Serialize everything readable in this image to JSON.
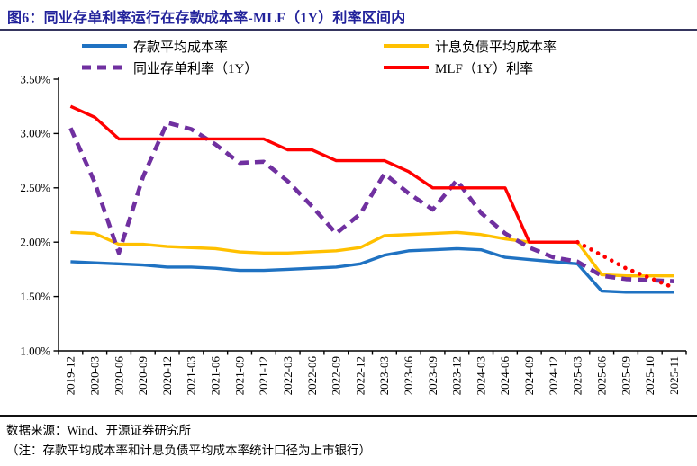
{
  "title": "图6：同业存单利率运行在存款成本率-MLF（1Y）利率区间内",
  "colors": {
    "title": "#22229B",
    "axis": "#000000",
    "deposit_blue": "#1F72C2",
    "liabilities_yellow": "#FFC000",
    "ncd_purple": "#7030A0",
    "mlf_red": "#FF0000"
  },
  "legend": {
    "position": "top",
    "items": [
      {
        "label": "存款平均成本率",
        "series": "deposit"
      },
      {
        "label": "计息负债平均成本率",
        "series": "liabilities"
      },
      {
        "label": "同业存单利率（1Y）",
        "series": "ncd1y"
      },
      {
        "label": "MLF（1Y）利率",
        "series": "mlf1y"
      }
    ]
  },
  "footer": {
    "source": "数据来源：Wind、开源证券研究所",
    "note": "（注：存款平均成本率和计息负债平均成本率统计口径为上市银行）"
  },
  "chart_data": {
    "type": "line",
    "title": "同业存单利率运行在存款成本率-MLF（1Y）利率区间内",
    "xlabel": "",
    "ylabel": "",
    "grid": false,
    "legend_position": "top",
    "ylim": [
      1.0,
      3.5
    ],
    "y_ticks": [
      {
        "v": 1.0,
        "label": "1.00%"
      },
      {
        "v": 1.5,
        "label": "1.50%"
      },
      {
        "v": 2.0,
        "label": "2.00%"
      },
      {
        "v": 2.5,
        "label": "2.50%"
      },
      {
        "v": 3.0,
        "label": "3.00%"
      },
      {
        "v": 3.5,
        "label": "3.50%"
      }
    ],
    "categories": [
      "2019-12",
      "2020-03",
      "2020-06",
      "2020-09",
      "2020-12",
      "2021-03",
      "2021-06",
      "2021-09",
      "2021-12",
      "2022-03",
      "2022-06",
      "2022-09",
      "2022-12",
      "2023-03",
      "2023-06",
      "2023-09",
      "2023-12",
      "2024-03",
      "2024-06",
      "2024-09",
      "2024-12",
      "2025-03",
      "2025-06",
      "2025-09",
      "2025-10",
      "2025-11"
    ],
    "unit": "%",
    "series": [
      {
        "id": "deposit",
        "name": "存款平均成本率",
        "color": "#1F72C2",
        "style": "solid",
        "values": [
          1.82,
          1.81,
          1.8,
          1.79,
          1.77,
          1.77,
          1.76,
          1.74,
          1.74,
          1.75,
          1.76,
          1.77,
          1.8,
          1.88,
          1.92,
          1.93,
          1.94,
          1.93,
          1.86,
          1.84,
          1.82,
          1.8,
          1.55,
          1.54,
          1.54,
          1.54
        ]
      },
      {
        "id": "liabilities",
        "name": "计息负债平均成本率",
        "color": "#FFC000",
        "style": "solid",
        "values": [
          2.09,
          2.08,
          1.98,
          1.98,
          1.96,
          1.95,
          1.94,
          1.91,
          1.9,
          1.9,
          1.91,
          1.92,
          1.95,
          2.06,
          2.07,
          2.08,
          2.09,
          2.07,
          2.03,
          2.0,
          2.0,
          2.0,
          1.7,
          1.69,
          1.69,
          1.69
        ]
      },
      {
        "id": "ncd1y",
        "name": "同业存单利率（1Y）",
        "color": "#7030A0",
        "style": "dashed",
        "values": [
          3.05,
          2.55,
          1.9,
          2.6,
          3.1,
          3.04,
          2.9,
          2.73,
          2.74,
          2.56,
          2.33,
          2.08,
          2.26,
          2.63,
          2.45,
          2.3,
          2.57,
          2.27,
          2.08,
          1.95,
          1.86,
          1.82,
          1.69,
          1.66,
          1.65,
          1.64
        ]
      },
      {
        "id": "mlf1y",
        "name": "MLF（1Y）利率",
        "color": "#FF0000",
        "style": "solid",
        "values": [
          3.25,
          3.15,
          2.95,
          2.95,
          2.95,
          2.95,
          2.95,
          2.95,
          2.95,
          2.85,
          2.85,
          2.75,
          2.75,
          2.75,
          2.65,
          2.5,
          2.5,
          2.5,
          2.5,
          2.0,
          2.0,
          2.0,
          null,
          null,
          null,
          null
        ]
      },
      {
        "id": "mlf1y-dotted",
        "name": "MLF（1Y）利率",
        "color": "#FF0000",
        "style": "dotted",
        "values": [
          null,
          null,
          null,
          null,
          null,
          null,
          null,
          null,
          null,
          null,
          null,
          null,
          null,
          null,
          null,
          null,
          null,
          null,
          null,
          null,
          null,
          2.0,
          1.88,
          1.76,
          1.67,
          1.58
        ]
      }
    ]
  }
}
